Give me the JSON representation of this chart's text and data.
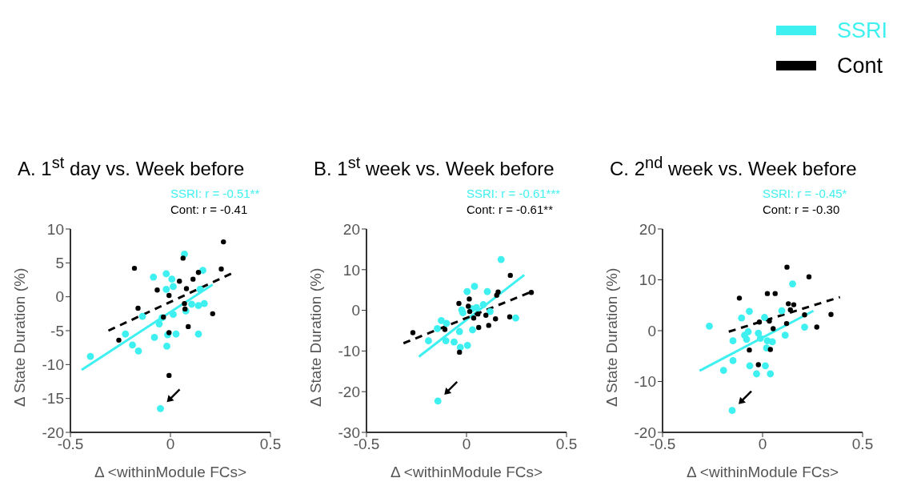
{
  "chart_data": [
    {
      "type": "scatter",
      "title": "A. 1$^{st}$ day vs. Week before",
      "xlabel": "Δ <withinModule FCs>",
      "ylabel": "Δ State Duration (%)",
      "xlim": [
        -0.5,
        0.5
      ],
      "xticks": [
        -0.5,
        0,
        0.5
      ],
      "ylim": [
        -20,
        10
      ],
      "yticks": [
        -20,
        -15,
        -10,
        -5,
        0,
        5,
        10
      ],
      "marker": "circle",
      "legend": "top right",
      "annotations": [
        "SSRI: r = -0.51**",
        "Cont: r = -0.41"
      ],
      "series": [
        {
          "name": "SSRI",
          "color": "#3ff0f0",
          "x": [
            -0.4,
            -0.225,
            -0.19,
            -0.16,
            -0.14,
            -0.085,
            -0.08,
            -0.056,
            -0.042,
            -0.021,
            -0.021,
            -0.018,
            -0.014,
            0.007,
            0.014,
            0.014,
            0.028,
            0.07,
            0.077,
            0.106,
            0.14,
            0.14,
            0.148,
            0.162,
            0.169,
            -0.05
          ],
          "values": [
            -8.8,
            -5.5,
            -7.1,
            -8.0,
            -2.9,
            2.9,
            -6.0,
            -4.0,
            -3.1,
            3.4,
            1.1,
            -7.3,
            -5.6,
            2.6,
            1.5,
            -2.6,
            -5.5,
            6.3,
            -2.1,
            -1.1,
            -1.3,
            -5.5,
            1.1,
            3.9,
            -1.0,
            -16.5
          ]
        },
        {
          "name": "Cont",
          "color": "#000000",
          "x": [
            -0.258,
            -0.18,
            -0.162,
            -0.066,
            -0.035,
            -0.007,
            -0.007,
            -0.007,
            0.045,
            0.063,
            0.08,
            0.07,
            0.073,
            0.089,
            0.113,
            0.14,
            0.211,
            0.254,
            0.265
          ],
          "values": [
            -6.4,
            4.2,
            -1.7,
            1.0,
            -3.0,
            0.2,
            -5.3,
            -11.6,
            2.3,
            5.7,
            1.2,
            -1.0,
            -1.8,
            -4.4,
            2.6,
            3.6,
            -2.5,
            4.1,
            8.1
          ]
        },
        {
          "type": "line",
          "color": "#3ff0f0",
          "line_style": "solid",
          "marker": "none",
          "x": [
            -0.444,
            0.211
          ],
          "values": [
            -10.8,
            1.8
          ]
        },
        {
          "type": "line",
          "color": "#000000",
          "line_style": "dashed",
          "marker": "none",
          "x": [
            -0.31,
            0.31
          ],
          "values": [
            -5.0,
            3.5
          ]
        }
      ]
    },
    {
      "type": "scatter",
      "title": "B. 1$^{st}$ week vs. Week before",
      "xlabel": "Δ <withinModule FCs>",
      "ylabel": "Δ State Duration (%)",
      "xlim": [
        -0.5,
        0.5
      ],
      "xticks": [
        -0.5,
        0,
        0.5
      ],
      "ylim": [
        -30,
        20
      ],
      "yticks": [
        -30,
        -20,
        -10,
        0,
        10,
        20
      ],
      "marker": "circle",
      "annotations": [
        "SSRI: r = -0.61***",
        "Cont: r = -0.61**"
      ],
      "series": [
        {
          "color": "#3ff0f0",
          "x": [
            0.173,
            -0.143,
            -0.19,
            -0.146,
            -0.126,
            -0.103,
            -0.1,
            -0.062,
            -0.035,
            -0.031,
            -0.024,
            -0.018,
            0.005,
            0.003,
            0.03,
            0.04,
            0.05,
            0.084,
            0.104,
            0.118,
            0.246,
            0.027
          ],
          "values": [
            12.5,
            -22.3,
            -7.5,
            -4.5,
            -2.5,
            -7.5,
            -3.2,
            -7.8,
            -5.2,
            -9.1,
            0.1,
            -0.6,
            -8.6,
            4.6,
            -4.8,
            5.9,
            0.7,
            1.4,
            4.6,
            -0.3,
            -1.9,
            0.4
          ]
        },
        {
          "color": "#000000",
          "x": [
            -0.268,
            -0.108,
            -0.038,
            0.014,
            0.009,
            0.016,
            0.036,
            0.057,
            0.061,
            -0.035,
            0.097,
            0.111,
            0.145,
            0.151,
            0.158,
            0.216,
            0.219,
            0.324
          ],
          "values": [
            -5.5,
            -4.7,
            1.7,
            2.8,
            1.0,
            -0.3,
            -1.9,
            -0.9,
            -4.2,
            -10.3,
            -1.2,
            -3.7,
            -2.1,
            3.7,
            4.5,
            -1.6,
            8.6,
            4.4
          ]
        },
        {
          "type": "line",
          "color": "#3ff0f0",
          "line_style": "solid",
          "marker": "none",
          "x": [
            -0.238,
            0.289
          ],
          "values": [
            -11.4,
            8.7
          ]
        },
        {
          "type": "line",
          "color": "#000000",
          "line_style": "dashed",
          "marker": "none",
          "x": [
            -0.315,
            0.327
          ],
          "values": [
            -8.1,
            4.6
          ]
        }
      ]
    },
    {
      "type": "scatter",
      "title": "C. 2$^{nd}$ week vs. Week before",
      "xlabel": "Δ <withinModule FCs>",
      "ylabel": "Δ State Duration (%)",
      "xlim": [
        -0.5,
        0.5
      ],
      "xticks": [
        -0.5,
        0,
        0.5
      ],
      "ylim": [
        -20,
        20
      ],
      "yticks": [
        -20,
        -10,
        0,
        10,
        20
      ],
      "marker": "circle",
      "annotations": [
        "SSRI: r = -0.45*",
        "Cont: r = -0.30"
      ],
      "series": [
        {
          "color": "#3ff0f0",
          "x": [
            -0.266,
            -0.195,
            -0.152,
            -0.148,
            -0.148,
            -0.105,
            -0.09,
            -0.08,
            -0.072,
            -0.066,
            -0.064,
            -0.03,
            -0.021,
            -0.011,
            0.01,
            0.014,
            0.02,
            0.024,
            0.039,
            0.049,
            0.096,
            0.113,
            0.15,
            0.21
          ],
          "values": [
            0.9,
            -7.8,
            -15.7,
            -5.9,
            -2.0,
            2.5,
            -0.9,
            -1.7,
            -0.2,
            3.8,
            -6.9,
            -8.5,
            -0.5,
            -1.5,
            2.6,
            -6.9,
            -3.4,
            -2.0,
            -8.5,
            -2.2,
            3.9,
            -0.9,
            9.2,
            0.7
          ]
        },
        {
          "color": "#000000",
          "x": [
            -0.116,
            -0.066,
            -0.021,
            -0.016,
            0.024,
            0.063,
            0.034,
            0.053,
            0.039,
            0.122,
            0.129,
            0.156,
            0.139,
            0.12,
            0.21,
            0.232,
            0.271,
            0.342
          ],
          "values": [
            6.4,
            -3.8,
            -6.7,
            1.7,
            7.3,
            7.3,
            1.9,
            0.4,
            -3.7,
            12.5,
            5.3,
            5.1,
            4.1,
            1.4,
            3.1,
            10.6,
            0.7,
            3.2
          ]
        },
        {
          "type": "line",
          "color": "#3ff0f0",
          "line_style": "solid",
          "marker": "none",
          "x": [
            -0.315,
            0.254
          ],
          "values": [
            -7.9,
            3.9
          ]
        },
        {
          "type": "line",
          "color": "#000000",
          "line_style": "dashed",
          "marker": "none",
          "x": [
            -0.169,
            0.387
          ],
          "values": [
            -0.2,
            6.6
          ]
        }
      ]
    }
  ]
}
